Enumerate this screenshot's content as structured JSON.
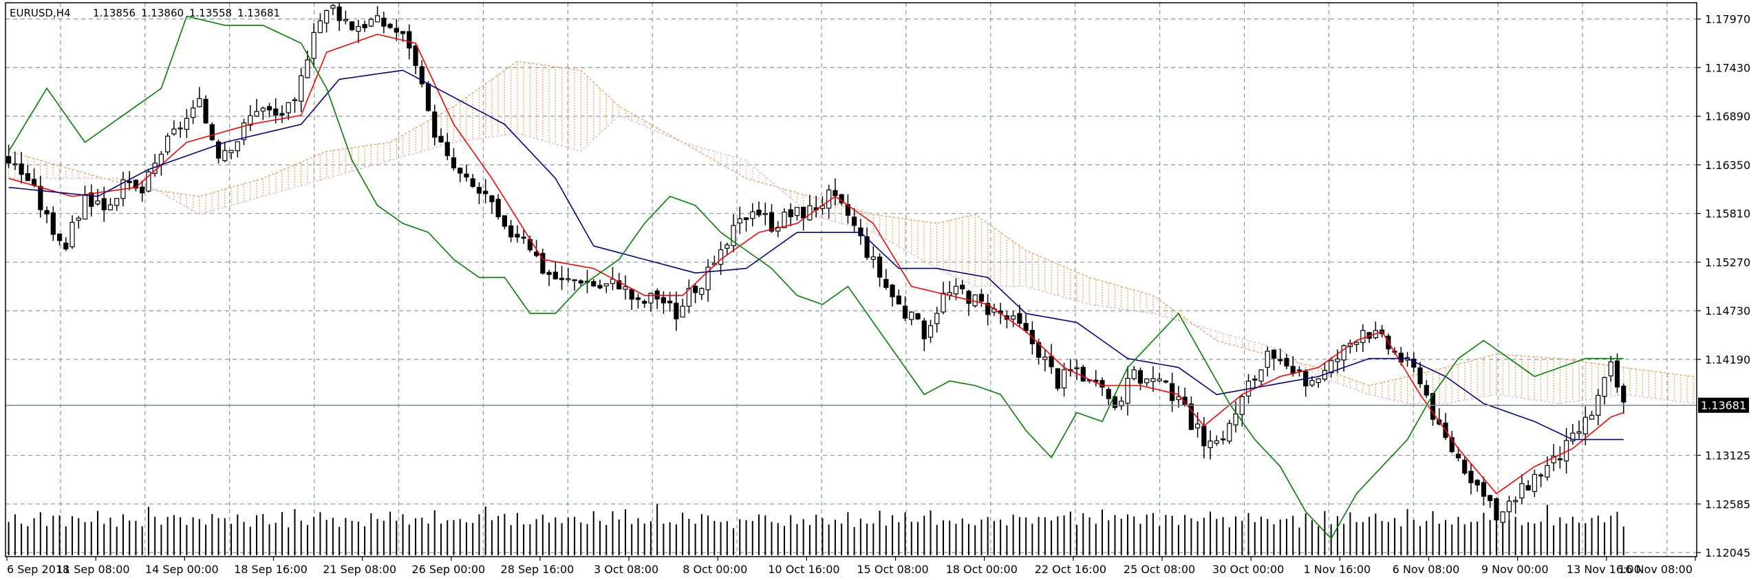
{
  "header": {
    "symbol_timeframe": "EURUSD,H4",
    "ohlc": [
      "1.13856",
      "1.13860",
      "1.13558",
      "1.13681"
    ]
  },
  "colors": {
    "background": "#ffffff",
    "grid": "#8c95a6",
    "frame": "#000000",
    "candle": "#000000",
    "tenkan": "#ff0000",
    "kijun": "#00008b",
    "chikou": "#008000",
    "span_a": "#f4a460",
    "span_b": "#d8bfd8",
    "volume": "#000000",
    "bid_line": "#778899",
    "price_tag_bg": "#000000",
    "price_tag_text": "#ffffff"
  },
  "chart_data": {
    "type": "candlestick",
    "title": "EURUSD,H4",
    "indicators": [
      "Ichimoku Kinko Hyo",
      "Volumes"
    ],
    "ylim": [
      1.2045,
      1.1825
    ],
    "grid": true,
    "y_ticks": [
      "1.17970",
      "1.17430",
      "1.16890",
      "1.16350",
      "1.15810",
      "1.15270",
      "1.14730",
      "1.14190",
      "1.13125",
      "1.12585",
      "1.12045"
    ],
    "x_ticks": [
      "6 Sep 2018",
      "11 Sep 08:00",
      "14 Sep 00:00",
      "18 Sep 16:00",
      "21 Sep 08:00",
      "26 Sep 00:00",
      "28 Sep 16:00",
      "3 Oct 08:00",
      "8 Oct 00:00",
      "10 Oct 16:00",
      "15 Oct 08:00",
      "18 Oct 00:00",
      "22 Oct 16:00",
      "25 Oct 08:00",
      "30 Oct 00:00",
      "1 Nov 16:00",
      "6 Nov 08:00",
      "9 Nov 00:00",
      "13 Nov 16:00",
      "16 Nov 08:00"
    ],
    "current_price": "1.13681",
    "close_path": [
      [
        0,
        1.164
      ],
      [
        3,
        1.162
      ],
      [
        6,
        1.1575
      ],
      [
        9,
        1.1545
      ],
      [
        12,
        1.16
      ],
      [
        15,
        1.159
      ],
      [
        18,
        1.161
      ],
      [
        21,
        1.1605
      ],
      [
        24,
        1.165
      ],
      [
        27,
        1.168
      ],
      [
        30,
        1.17
      ],
      [
        33,
        1.165
      ],
      [
        36,
        1.1665
      ],
      [
        39,
        1.17
      ],
      [
        42,
        1.169
      ],
      [
        45,
        1.17
      ],
      [
        48,
        1.179
      ],
      [
        51,
        1.181
      ],
      [
        54,
        1.179
      ],
      [
        57,
        1.1795
      ],
      [
        60,
        1.179
      ],
      [
        63,
        1.177
      ],
      [
        66,
        1.169
      ],
      [
        69,
        1.164
      ],
      [
        72,
        1.1615
      ],
      [
        75,
        1.16
      ],
      [
        78,
        1.156
      ],
      [
        81,
        1.156
      ],
      [
        84,
        1.152
      ],
      [
        87,
        1.1505
      ],
      [
        90,
        1.151
      ],
      [
        93,
        1.15
      ],
      [
        96,
        1.1505
      ],
      [
        99,
        1.148
      ],
      [
        102,
        1.149
      ],
      [
        105,
        1.147
      ],
      [
        108,
        1.15
      ],
      [
        111,
        1.152
      ],
      [
        114,
        1.156
      ],
      [
        117,
        1.159
      ],
      [
        120,
        1.157
      ],
      [
        123,
        1.158
      ],
      [
        126,
        1.1585
      ],
      [
        129,
        1.16
      ],
      [
        132,
        1.158
      ],
      [
        135,
        1.154
      ],
      [
        138,
        1.15
      ],
      [
        141,
        1.147
      ],
      [
        144,
        1.145
      ],
      [
        147,
        1.149
      ],
      [
        150,
        1.1495
      ],
      [
        153,
        1.148
      ],
      [
        156,
        1.147
      ],
      [
        159,
        1.1455
      ],
      [
        162,
        1.143
      ],
      [
        165,
        1.1395
      ],
      [
        168,
        1.141
      ],
      [
        171,
        1.1385
      ],
      [
        174,
        1.137
      ],
      [
        177,
        1.14
      ],
      [
        180,
        1.1395
      ],
      [
        183,
        1.138
      ],
      [
        186,
        1.135
      ],
      [
        189,
        1.132
      ],
      [
        192,
        1.1345
      ],
      [
        195,
        1.139
      ],
      [
        198,
        1.142
      ],
      [
        201,
        1.1405
      ],
      [
        204,
        1.1395
      ],
      [
        207,
        1.1405
      ],
      [
        210,
        1.143
      ],
      [
        213,
        1.1455
      ],
      [
        216,
        1.144
      ],
      [
        219,
        1.142
      ],
      [
        222,
        1.14
      ],
      [
        225,
        1.134
      ],
      [
        228,
        1.131
      ],
      [
        231,
        1.128
      ],
      [
        234,
        1.124
      ],
      [
        237,
        1.1265
      ],
      [
        240,
        1.129
      ],
      [
        243,
        1.1305
      ],
      [
        246,
        1.133
      ],
      [
        249,
        1.136
      ],
      [
        252,
        1.141
      ],
      [
        254,
        1.1368
      ]
    ],
    "tenkan_path": [
      [
        0,
        1.162
      ],
      [
        10,
        1.16
      ],
      [
        20,
        1.161
      ],
      [
        28,
        1.166
      ],
      [
        38,
        1.168
      ],
      [
        46,
        1.169
      ],
      [
        50,
        1.176
      ],
      [
        58,
        1.178
      ],
      [
        64,
        1.177
      ],
      [
        70,
        1.168
      ],
      [
        76,
        1.162
      ],
      [
        84,
        1.153
      ],
      [
        92,
        1.152
      ],
      [
        100,
        1.149
      ],
      [
        106,
        1.149
      ],
      [
        112,
        1.153
      ],
      [
        118,
        1.156
      ],
      [
        124,
        1.157
      ],
      [
        130,
        1.16
      ],
      [
        136,
        1.157
      ],
      [
        142,
        1.15
      ],
      [
        148,
        1.149
      ],
      [
        154,
        1.148
      ],
      [
        160,
        1.145
      ],
      [
        166,
        1.141
      ],
      [
        172,
        1.139
      ],
      [
        178,
        1.139
      ],
      [
        184,
        1.138
      ],
      [
        188,
        1.1345
      ],
      [
        194,
        1.138
      ],
      [
        200,
        1.14
      ],
      [
        206,
        1.141
      ],
      [
        212,
        1.144
      ],
      [
        216,
        1.145
      ],
      [
        222,
        1.138
      ],
      [
        228,
        1.132
      ],
      [
        234,
        1.127
      ],
      [
        240,
        1.13
      ],
      [
        246,
        1.132
      ],
      [
        252,
        1.1355
      ],
      [
        254,
        1.136
      ]
    ],
    "kijun_path": [
      [
        0,
        1.161
      ],
      [
        14,
        1.16
      ],
      [
        22,
        1.163
      ],
      [
        34,
        1.166
      ],
      [
        46,
        1.168
      ],
      [
        52,
        1.173
      ],
      [
        62,
        1.174
      ],
      [
        70,
        1.171
      ],
      [
        78,
        1.168
      ],
      [
        86,
        1.162
      ],
      [
        92,
        1.1545
      ],
      [
        100,
        1.153
      ],
      [
        108,
        1.1515
      ],
      [
        116,
        1.152
      ],
      [
        124,
        1.156
      ],
      [
        134,
        1.156
      ],
      [
        140,
        1.152
      ],
      [
        146,
        1.152
      ],
      [
        154,
        1.151
      ],
      [
        160,
        1.147
      ],
      [
        168,
        1.146
      ],
      [
        176,
        1.142
      ],
      [
        184,
        1.141
      ],
      [
        190,
        1.138
      ],
      [
        198,
        1.139
      ],
      [
        206,
        1.14
      ],
      [
        214,
        1.142
      ],
      [
        220,
        1.142
      ],
      [
        226,
        1.14
      ],
      [
        232,
        1.137
      ],
      [
        240,
        1.135
      ],
      [
        246,
        1.133
      ],
      [
        252,
        1.133
      ],
      [
        254,
        1.133
      ]
    ],
    "chikou_path": [
      [
        0,
        1.165
      ],
      [
        6,
        1.172
      ],
      [
        12,
        1.166
      ],
      [
        18,
        1.169
      ],
      [
        24,
        1.172
      ],
      [
        28,
        1.18
      ],
      [
        34,
        1.179
      ],
      [
        40,
        1.179
      ],
      [
        46,
        1.177
      ],
      [
        50,
        1.172
      ],
      [
        54,
        1.164
      ],
      [
        58,
        1.159
      ],
      [
        62,
        1.157
      ],
      [
        66,
        1.156
      ],
      [
        70,
        1.153
      ],
      [
        74,
        1.151
      ],
      [
        78,
        1.151
      ],
      [
        82,
        1.147
      ],
      [
        86,
        1.147
      ],
      [
        90,
        1.15
      ],
      [
        96,
        1.153
      ],
      [
        100,
        1.157
      ],
      [
        104,
        1.16
      ],
      [
        108,
        1.159
      ],
      [
        112,
        1.156
      ],
      [
        116,
        1.154
      ],
      [
        120,
        1.152
      ],
      [
        124,
        1.149
      ],
      [
        128,
        1.148
      ],
      [
        132,
        1.15
      ],
      [
        136,
        1.146
      ],
      [
        140,
        1.142
      ],
      [
        144,
        1.138
      ],
      [
        148,
        1.1395
      ],
      [
        152,
        1.139
      ],
      [
        156,
        1.138
      ],
      [
        160,
        1.134
      ],
      [
        164,
        1.131
      ],
      [
        168,
        1.136
      ],
      [
        172,
        1.135
      ],
      [
        176,
        1.141
      ],
      [
        180,
        1.144
      ],
      [
        184,
        1.147
      ],
      [
        188,
        1.142
      ],
      [
        192,
        1.137
      ],
      [
        196,
        1.133
      ],
      [
        200,
        1.13
      ],
      [
        204,
        1.125
      ],
      [
        208,
        1.122
      ],
      [
        212,
        1.127
      ],
      [
        216,
        1.13
      ],
      [
        220,
        1.133
      ],
      [
        224,
        1.138
      ],
      [
        228,
        1.142
      ],
      [
        232,
        1.144
      ],
      [
        236,
        1.142
      ],
      [
        240,
        1.14
      ],
      [
        244,
        1.141
      ],
      [
        248,
        1.142
      ],
      [
        254,
        1.142
      ]
    ],
    "span_a_path": [
      [
        0,
        1.165
      ],
      [
        20,
        1.161
      ],
      [
        30,
        1.16
      ],
      [
        40,
        1.162
      ],
      [
        50,
        1.165
      ],
      [
        60,
        1.166
      ],
      [
        70,
        1.17
      ],
      [
        80,
        1.175
      ],
      [
        90,
        1.174
      ],
      [
        96,
        1.17
      ],
      [
        106,
        1.166
      ],
      [
        116,
        1.162
      ],
      [
        126,
        1.16
      ],
      [
        136,
        1.158
      ],
      [
        146,
        1.157
      ],
      [
        152,
        1.158
      ],
      [
        160,
        1.154
      ],
      [
        170,
        1.151
      ],
      [
        180,
        1.149
      ],
      [
        190,
        1.144
      ],
      [
        200,
        1.142
      ],
      [
        206,
        1.141
      ],
      [
        214,
        1.139
      ],
      [
        220,
        1.14
      ],
      [
        226,
        1.141
      ],
      [
        234,
        1.1425
      ],
      [
        244,
        1.142
      ],
      [
        254,
        1.141
      ],
      [
        265,
        1.14
      ]
    ],
    "span_b_path": [
      [
        0,
        1.162
      ],
      [
        20,
        1.162
      ],
      [
        30,
        1.158
      ],
      [
        40,
        1.16
      ],
      [
        50,
        1.162
      ],
      [
        60,
        1.164
      ],
      [
        70,
        1.166
      ],
      [
        80,
        1.167
      ],
      [
        90,
        1.165
      ],
      [
        96,
        1.169
      ],
      [
        106,
        1.166
      ],
      [
        116,
        1.164
      ],
      [
        126,
        1.158
      ],
      [
        136,
        1.156
      ],
      [
        146,
        1.152
      ],
      [
        152,
        1.15
      ],
      [
        160,
        1.15
      ],
      [
        170,
        1.148
      ],
      [
        180,
        1.147
      ],
      [
        190,
        1.145
      ],
      [
        200,
        1.143
      ],
      [
        206,
        1.14
      ],
      [
        214,
        1.138
      ],
      [
        220,
        1.137
      ],
      [
        226,
        1.137
      ],
      [
        234,
        1.138
      ],
      [
        244,
        1.137
      ],
      [
        254,
        1.138
      ],
      [
        265,
        1.137
      ]
    ],
    "volume_levels": [
      0.55,
      0.8,
      0.6,
      0.45,
      0.7,
      0.9,
      0.5,
      0.65,
      0.75,
      0.4,
      0.85,
      0.6,
      0.5,
      0.7,
      0.95,
      0.55,
      0.65,
      0.45,
      0.8,
      0.6,
      0.7,
      0.5,
      0.9,
      0.6,
      0.55,
      0.75,
      0.65,
      0.85,
      0.45,
      0.7,
      0.6,
      0.5,
      1.0,
      0.55,
      0.7
    ]
  }
}
